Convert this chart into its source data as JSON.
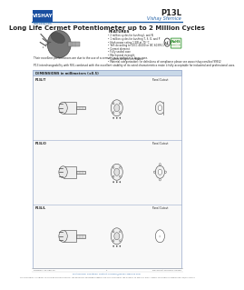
{
  "title": "Long Life Cermet Potentiometer up to 2 Million Cycles",
  "product_code": "P13L",
  "brand": "Vishay Sfernice",
  "website": "www.vishay.com",
  "features_title": "FEATURES",
  "features": [
    "• 2 million cycles for bushing L and N",
    "• 1 million cycles for bushing T, S, O, and P",
    "• High power rating 1.5W at 70 °C",
    "• Test according to CECC 41000 or IEC 60393-1",
    "• Cermet element",
    "• Fully sealed case",
    "• Mechanical strength",
    "• Custom designs on request",
    "• Material categorization: for definitions of compliance please see www.vishay.com/doc?99912"
  ],
  "description1": "Their excellent performances are due to the use of a cermet-track sealed in a large case.",
  "description2": "P13 interchangeability with RVL combined with the excellent stability of its rated characteristics make it fully acceptable for industrial and professional uses.",
  "dimensions_title": "DIMENSIONS in millimeters (±0.5)",
  "variants": [
    "P13L/T",
    "P13L/O",
    "P13L/L"
  ],
  "footer_left": "Revision: 22-Sep-10",
  "footer_center": "1",
  "footer_doc": "Document Number: 51583",
  "footer_contact": "For technical questions, contact: sfernice@vishay-sfernice.com",
  "footer_disclaimer": "THIS DOCUMENT IS SUBJECT TO CHANGE WITHOUT NOTICE. THE PRODUCTS DESCRIBED HEREIN AND THIS DOCUMENT ARE SUBJECT TO SPECIFIC DISCLAIMERS, SET FORTH AT www.vishay.com/doc?91000",
  "bg_color": "#ffffff",
  "blue_color": "#1f5fa6",
  "dim_bg": "#c8d8e8",
  "dim_border": "#99aacc",
  "text_color": "#222222",
  "gray_text": "#666666",
  "logo_blue": "#1a4fa0",
  "logo_text": "#ffffff",
  "logo_yellow": "#f5c400"
}
